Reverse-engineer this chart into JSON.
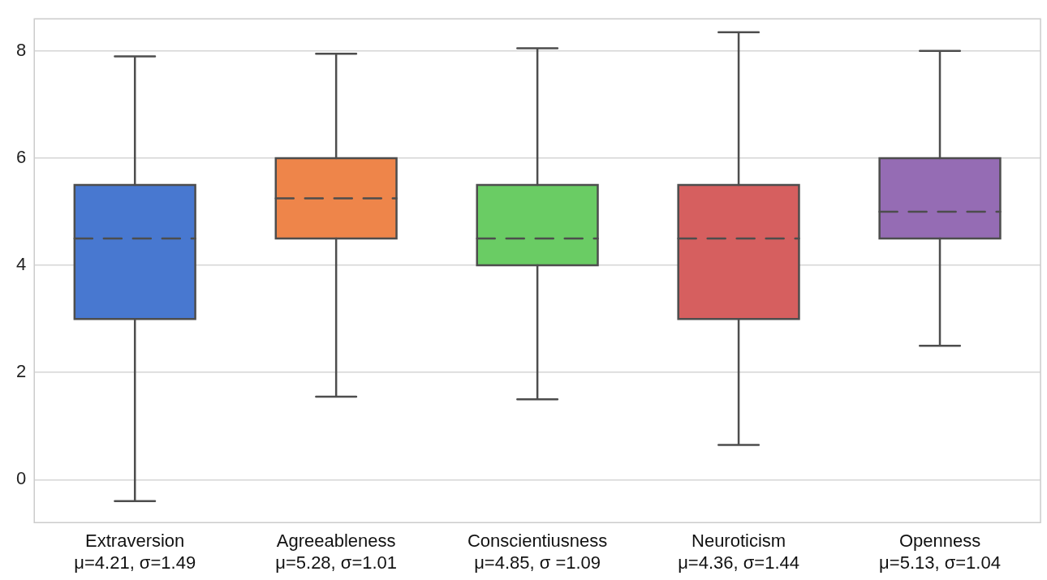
{
  "chart_data": {
    "type": "box",
    "categories": [
      "Extraversion\nμ=4.21, σ=1.49",
      "Agreeableness\nμ=5.28, σ=1.01",
      "Conscientiusness\nμ=4.85, σ =1.09",
      "Neuroticism\nμ=4.36, σ=1.44",
      "Openness\nμ=5.13, σ=1.04"
    ],
    "boxes": [
      {
        "low": -0.4,
        "q1": 3.0,
        "median": 4.5,
        "q3": 5.5,
        "high": 7.9
      },
      {
        "low": 1.55,
        "q1": 4.5,
        "median": 5.25,
        "q3": 6.0,
        "high": 7.95
      },
      {
        "low": 1.5,
        "q1": 4.0,
        "median": 4.5,
        "q3": 5.5,
        "high": 8.05
      },
      {
        "low": 0.65,
        "q1": 3.0,
        "median": 4.5,
        "q3": 5.5,
        "high": 8.35
      },
      {
        "low": 2.5,
        "q1": 4.5,
        "median": 5.0,
        "q3": 6.0,
        "high": 8.0
      }
    ],
    "colors": [
      "#4878d0",
      "#ee854a",
      "#6acc64",
      "#d65f5f",
      "#956cb4"
    ],
    "ylim": [
      -0.8,
      8.6
    ],
    "yticks": [
      0,
      2,
      4,
      6,
      8
    ],
    "grid": "y"
  }
}
